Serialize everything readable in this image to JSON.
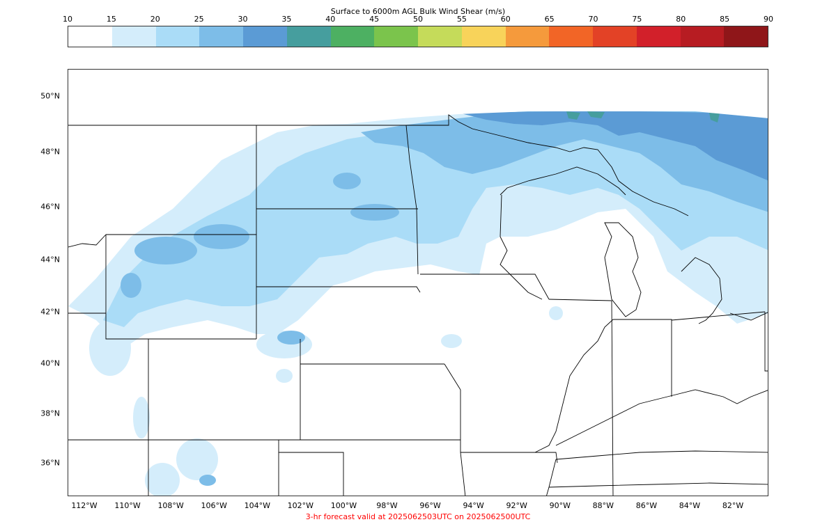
{
  "colorbar": {
    "title": "Surface to 6000m AGL Bulk Wind Shear (m/s)",
    "ticks": [
      "10",
      "15",
      "20",
      "25",
      "30",
      "35",
      "40",
      "45",
      "50",
      "55",
      "60",
      "65",
      "70",
      "75",
      "80",
      "85",
      "90"
    ],
    "colors": [
      "#ffffff",
      "#d4edfb",
      "#aadcf7",
      "#7dbde8",
      "#5b9bd5",
      "#469e9e",
      "#4db062",
      "#7bc44c",
      "#c5db5a",
      "#f8d35a",
      "#f59a3c",
      "#f26526",
      "#e34226",
      "#d2202a",
      "#b71c22",
      "#8f1619"
    ]
  },
  "map": {
    "lat_labels": [
      "50°N",
      "48°N",
      "46°N",
      "44°N",
      "42°N",
      "40°N",
      "38°N",
      "36°N"
    ],
    "lon_labels": [
      "112°W",
      "110°W",
      "108°W",
      "106°W",
      "104°W",
      "102°W",
      "100°W",
      "98°W",
      "96°W",
      "94°W",
      "92°W",
      "90°W",
      "88°W",
      "86°W",
      "84°W",
      "82°W"
    ]
  },
  "footer": "3-hr forecast valid at 2025062503UTC on 2025062500UTC"
}
